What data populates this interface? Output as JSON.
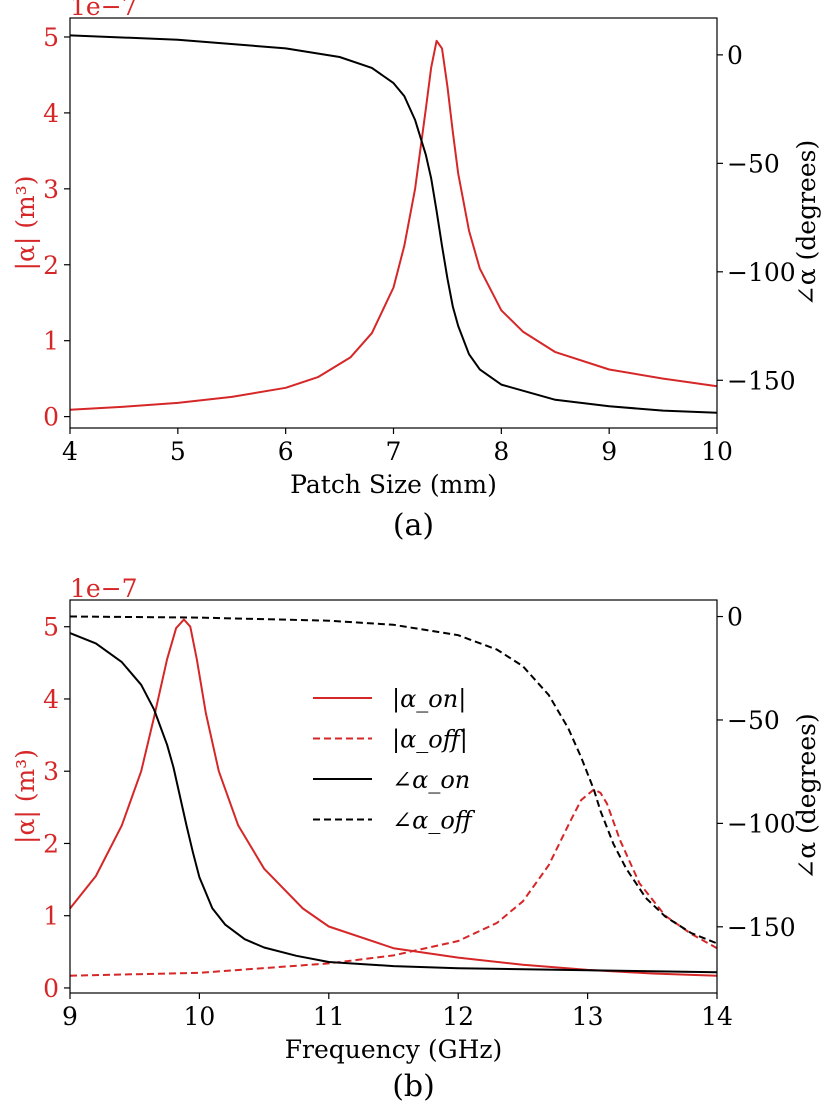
{
  "chart_data": [
    {
      "type": "line",
      "panel_label": "(a)",
      "xlabel": "Patch Size (mm)",
      "ylabel_left": "|α| (m³)",
      "ylabel_right": "∠α (degrees)",
      "left_scale_label": "1e−7",
      "xlim": [
        4,
        10
      ],
      "ylim_left": [
        -0.15,
        5.25
      ],
      "ylim_right": [
        -172,
        17
      ],
      "xticks": [
        4,
        5,
        6,
        7,
        8,
        9,
        10
      ],
      "xtick_labels": [
        "4",
        "5",
        "6",
        "7",
        "8",
        "9",
        "10"
      ],
      "yticks_left": [
        0,
        1,
        2,
        3,
        4,
        5
      ],
      "ytick_labels_left": [
        "0",
        "1",
        "2",
        "3",
        "4",
        "5"
      ],
      "yticks_right": [
        0,
        -50,
        -100,
        -150
      ],
      "ytick_labels_right": [
        "0",
        "−50",
        "−100",
        "−150"
      ],
      "grid": false,
      "colors": {
        "magnitude": "#d62728",
        "phase": "#000000"
      },
      "series": [
        {
          "axis": "left",
          "color": "#d62728",
          "dash": "solid",
          "x": [
            4.0,
            4.5,
            5.0,
            5.5,
            6.0,
            6.3,
            6.6,
            6.8,
            7.0,
            7.1,
            7.2,
            7.3,
            7.35,
            7.4,
            7.45,
            7.5,
            7.55,
            7.6,
            7.7,
            7.8,
            8.0,
            8.2,
            8.5,
            9.0,
            9.5,
            10.0
          ],
          "y": [
            0.09,
            0.13,
            0.18,
            0.26,
            0.38,
            0.52,
            0.78,
            1.1,
            1.7,
            2.25,
            3.0,
            4.05,
            4.6,
            4.95,
            4.85,
            4.35,
            3.75,
            3.2,
            2.45,
            1.95,
            1.4,
            1.12,
            0.85,
            0.62,
            0.5,
            0.4
          ]
        },
        {
          "axis": "right",
          "color": "#000000",
          "dash": "solid",
          "x": [
            4.0,
            5.0,
            6.0,
            6.5,
            6.8,
            7.0,
            7.1,
            7.2,
            7.3,
            7.35,
            7.4,
            7.45,
            7.5,
            7.55,
            7.6,
            7.7,
            7.8,
            8.0,
            8.5,
            9.0,
            9.5,
            10.0
          ],
          "y": [
            9,
            7,
            3,
            -1,
            -6,
            -13,
            -19,
            -30,
            -46,
            -57,
            -72,
            -88,
            -103,
            -116,
            -125,
            -138,
            -145,
            -152,
            -159,
            -162,
            -164,
            -165
          ]
        }
      ]
    },
    {
      "type": "line",
      "panel_label": "(b)",
      "xlabel": "Frequency (GHz)",
      "ylabel_left": "|α| (m³)",
      "ylabel_right": "∠α (degrees)",
      "left_scale_label": "1e−7",
      "xlim": [
        9,
        14
      ],
      "ylim_left": [
        -0.07,
        5.37
      ],
      "ylim_right": [
        -182,
        8
      ],
      "xticks": [
        9,
        10,
        11,
        12,
        13,
        14
      ],
      "xtick_labels": [
        "9",
        "10",
        "11",
        "12",
        "13",
        "14"
      ],
      "yticks_left": [
        0,
        1,
        2,
        3,
        4,
        5
      ],
      "ytick_labels_left": [
        "0",
        "1",
        "2",
        "3",
        "4",
        "5"
      ],
      "yticks_right": [
        0,
        -50,
        -100,
        -150
      ],
      "ytick_labels_right": [
        "0",
        "−50",
        "−100",
        "−150"
      ],
      "grid": false,
      "legend": "center",
      "legend_labels": [
        "|α_on|",
        "|α_off|",
        "∠α_on",
        "∠α_off"
      ],
      "colors": {
        "magnitude": "#d62728",
        "phase": "#000000"
      },
      "series": [
        {
          "axis": "left",
          "color": "#d62728",
          "dash": "solid",
          "legend_index": 0,
          "x": [
            9.0,
            9.2,
            9.4,
            9.55,
            9.65,
            9.75,
            9.82,
            9.88,
            9.93,
            9.98,
            10.05,
            10.15,
            10.3,
            10.5,
            10.8,
            11.0,
            11.5,
            12.0,
            12.5,
            13.0,
            13.5,
            14.0
          ],
          "y": [
            1.1,
            1.55,
            2.25,
            3.0,
            3.75,
            4.55,
            4.98,
            5.1,
            5.0,
            4.55,
            3.8,
            3.0,
            2.25,
            1.65,
            1.1,
            0.85,
            0.55,
            0.42,
            0.32,
            0.25,
            0.2,
            0.17
          ]
        },
        {
          "axis": "left",
          "color": "#d62728",
          "dash": "dashed",
          "legend_index": 1,
          "x": [
            9.0,
            10.0,
            11.0,
            11.5,
            12.0,
            12.3,
            12.5,
            12.7,
            12.85,
            12.95,
            13.05,
            13.1,
            13.15,
            13.25,
            13.4,
            13.6,
            13.8,
            14.0
          ],
          "y": [
            0.17,
            0.21,
            0.34,
            0.45,
            0.65,
            0.9,
            1.2,
            1.7,
            2.25,
            2.6,
            2.75,
            2.7,
            2.55,
            2.05,
            1.45,
            1.0,
            0.75,
            0.55
          ]
        },
        {
          "axis": "right",
          "color": "#000000",
          "dash": "solid",
          "legend_index": 2,
          "x": [
            9.0,
            9.2,
            9.4,
            9.55,
            9.65,
            9.75,
            9.8,
            9.85,
            9.9,
            9.95,
            10.0,
            10.1,
            10.2,
            10.35,
            10.5,
            10.75,
            11.0,
            11.5,
            12.0,
            13.0,
            14.0
          ],
          "y": [
            -8,
            -13,
            -22,
            -33,
            -45,
            -62,
            -73,
            -87,
            -101,
            -114,
            -126,
            -141,
            -149,
            -156,
            -160,
            -164,
            -167,
            -169,
            -170,
            -171,
            -172
          ]
        },
        {
          "axis": "right",
          "color": "#000000",
          "dash": "dashed",
          "legend_index": 3,
          "x": [
            9.0,
            10.0,
            11.0,
            11.5,
            12.0,
            12.3,
            12.5,
            12.7,
            12.85,
            12.95,
            13.0,
            13.05,
            13.1,
            13.2,
            13.3,
            13.45,
            13.6,
            13.8,
            14.0
          ],
          "y": [
            0,
            -0.5,
            -2,
            -4,
            -9,
            -16,
            -24,
            -38,
            -54,
            -68,
            -76,
            -84,
            -94,
            -110,
            -122,
            -136,
            -145,
            -153,
            -158
          ]
        }
      ]
    }
  ]
}
